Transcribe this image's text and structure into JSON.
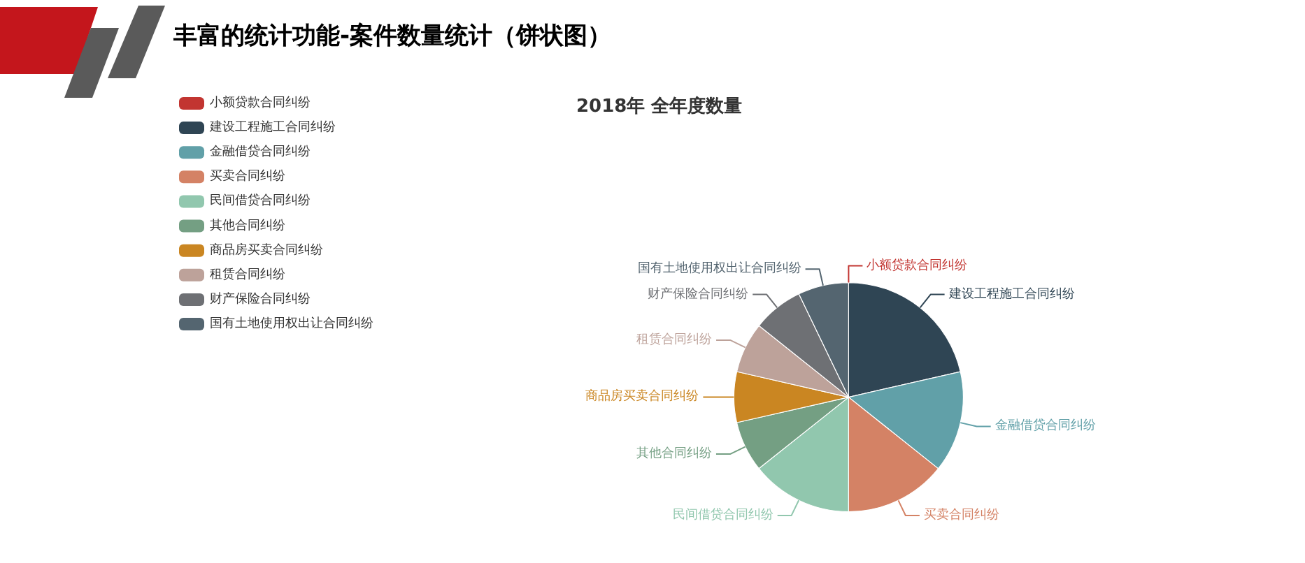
{
  "chart_data": {
    "type": "pie",
    "title": "丰富的统计功能-案件数量统计（饼状图）",
    "subtitle": "2018年 全年度数量",
    "categories": [
      "小额贷款合同纠纷",
      "建设工程施工合同纠纷",
      "金融借贷合同纠纷",
      "买卖合同纠纷",
      "民间借贷合同纠纷",
      "其他合同纠纷",
      "商品房买卖合同纠纷",
      "租赁合同纠纷",
      "财产保险合同纠纷",
      "国有土地使用权出让合同纠纷"
    ],
    "values": [
      0,
      21.43,
      14.29,
      14.29,
      14.29,
      7.14,
      7.14,
      7.14,
      7.14,
      7.14
    ],
    "colors": [
      "#c23531",
      "#2f4554",
      "#61a0a8",
      "#d48265",
      "#91c7ae",
      "#749f83",
      "#ca8622",
      "#bda29a",
      "#6e7074",
      "#546570"
    ],
    "legend": "top left"
  }
}
